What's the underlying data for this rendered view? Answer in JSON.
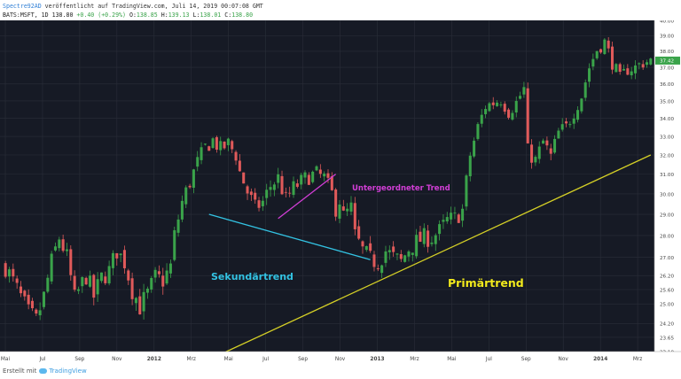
{
  "header": {
    "author": "Spectre92AD",
    "published": "veröffentlicht auf TradingView.com, Juli 14, 2019 00:07:08 GMT",
    "symbol_label": "BATS:MSFT, 1D",
    "last_price": "138.80",
    "change": "+0.40 (+0.29%)",
    "open_label": "O:",
    "open_value": "138.85",
    "high_label": "H:",
    "high_value": "139.13",
    "low_label": "L:",
    "low_value": "138.01",
    "close_label": "C:",
    "close_value": "138.80"
  },
  "footer": {
    "prefix": "Erstellt mit",
    "brand": "TradingView"
  },
  "chart_data": {
    "type": "candlestick",
    "x_tick_labels": [
      "Mai",
      "Jul",
      "Sep",
      "Nov",
      "2012",
      "Mrz",
      "Mai",
      "Jul",
      "Sep",
      "Nov",
      "2013",
      "Mrz",
      "Mai",
      "Jul",
      "Sep",
      "Nov",
      "2014",
      "Mrz"
    ],
    "y_tick_labels": [
      "40.00",
      "39.00",
      "38.00",
      "37.00",
      "36.00",
      "35.00",
      "34.00",
      "33.00",
      "32.00",
      "31.00",
      "30.00",
      "29.00",
      "28.00",
      "27.00",
      "26.20",
      "25.60",
      "25.00",
      "24.20",
      "23.65",
      "23.10"
    ],
    "y_range": [
      23.1,
      40.0
    ],
    "scale": "log",
    "current_price_label": "37.42",
    "current_price": 37.42,
    "close_path": [
      [
        0,
        26.6
      ],
      [
        3,
        25.6
      ],
      [
        6,
        24.6
      ],
      [
        8,
        24.3
      ],
      [
        10,
        25.3
      ],
      [
        12,
        26.8
      ],
      [
        14,
        27.9
      ],
      [
        16,
        27.0
      ],
      [
        18,
        25.2
      ],
      [
        21,
        26.2
      ],
      [
        23,
        25.3
      ],
      [
        25,
        26.1
      ],
      [
        27,
        26.4
      ],
      [
        29,
        27.3
      ],
      [
        31,
        26.8
      ],
      [
        33,
        25.6
      ],
      [
        35,
        24.9
      ],
      [
        37,
        25.4
      ],
      [
        39,
        26.1
      ],
      [
        41,
        26.0
      ],
      [
        43,
        26.6
      ],
      [
        44,
        28.0
      ],
      [
        46,
        29.6
      ],
      [
        48,
        30.6
      ],
      [
        50,
        31.6
      ],
      [
        52,
        32.4
      ],
      [
        54,
        32.8
      ],
      [
        56,
        32.3
      ],
      [
        58,
        32.6
      ],
      [
        60,
        32.0
      ],
      [
        61,
        31.1
      ],
      [
        63,
        30.1
      ],
      [
        65,
        29.3
      ],
      [
        67,
        29.6
      ],
      [
        69,
        30.4
      ],
      [
        71,
        30.8
      ],
      [
        73,
        29.7
      ],
      [
        75,
        30.3
      ],
      [
        77,
        30.6
      ],
      [
        79,
        30.9
      ],
      [
        81,
        31.0
      ],
      [
        83,
        30.8
      ],
      [
        85,
        30.0
      ],
      [
        86,
        29.3
      ],
      [
        87,
        29.7
      ],
      [
        88,
        28.9
      ],
      [
        90,
        29.3
      ],
      [
        91,
        28.0
      ],
      [
        93,
        27.3
      ],
      [
        95,
        26.9
      ],
      [
        97,
        26.8
      ],
      [
        99,
        27.3
      ],
      [
        101,
        27.0
      ],
      [
        103,
        26.8
      ],
      [
        105,
        27.4
      ],
      [
        107,
        27.7
      ],
      [
        109,
        27.9
      ],
      [
        111,
        27.9
      ],
      [
        113,
        28.2
      ],
      [
        115,
        28.7
      ],
      [
        117,
        28.8
      ],
      [
        119,
        29.2
      ],
      [
        121,
        32.0
      ],
      [
        123,
        33.5
      ],
      [
        125,
        34.7
      ],
      [
        127,
        34.9
      ],
      [
        129,
        35.1
      ],
      [
        131,
        34.4
      ],
      [
        133,
        34.9
      ],
      [
        135,
        35.7
      ],
      [
        136,
        32.2
      ],
      [
        138,
        31.7
      ],
      [
        140,
        32.7
      ],
      [
        142,
        31.9
      ],
      [
        144,
        33.2
      ],
      [
        146,
        33.5
      ],
      [
        148,
        34.4
      ],
      [
        150,
        35.3
      ],
      [
        152,
        37.0
      ],
      [
        154,
        38.1
      ],
      [
        156,
        38.6
      ],
      [
        158,
        37.3
      ],
      [
        160,
        36.3
      ],
      [
        162,
        36.9
      ],
      [
        164,
        37.0
      ],
      [
        166,
        37.3
      ],
      [
        168,
        37.4
      ]
    ],
    "annotations": [
      {
        "text": "Untergeordneter Trend",
        "color": "#d23ed6"
      },
      {
        "text": "Sekundärtrend",
        "color": "#33c3e3"
      },
      {
        "text": "Primärtrend",
        "color": "#f2ea1c"
      }
    ],
    "trend_lines": [
      {
        "name": "Primärtrend",
        "color": "#d4cf26",
        "from": [
          41,
          22.0
        ],
        "to": [
          168,
          32.0
        ]
      },
      {
        "name": "Sekundärtrend",
        "color": "#33c3e3",
        "from": [
          53,
          29.0
        ],
        "to": [
          95,
          26.9
        ]
      },
      {
        "name": "Untergeordneter Trend",
        "color": "#d23ed6",
        "from": [
          71,
          28.8
        ],
        "to": [
          86,
          31.0
        ]
      }
    ],
    "colors": {
      "background": "#161a25",
      "grid": "#2a2e39",
      "up": "#3aa34a",
      "down": "#e05a5a",
      "axis_text": "#9aa0aa",
      "axis_bg": "#ffffff",
      "price_tag": "#3aa34a"
    }
  }
}
